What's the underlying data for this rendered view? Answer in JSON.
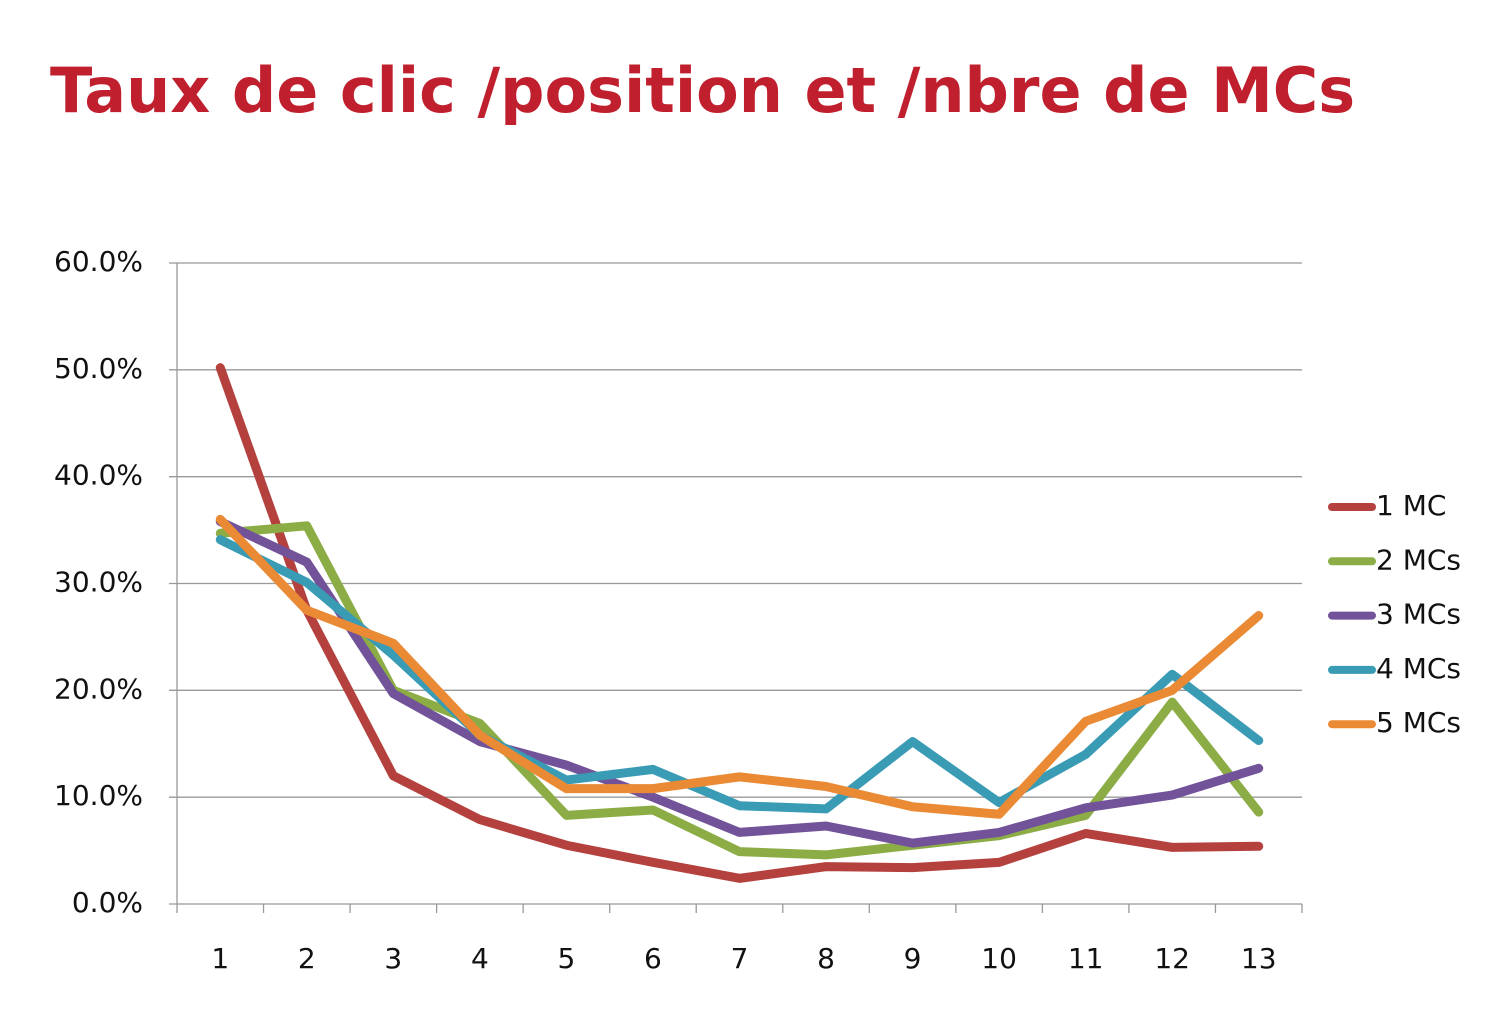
{
  "chart_data": {
    "type": "line",
    "title": "Taux de clic /position et /nbre de MCs",
    "categories": [
      "1",
      "2",
      "3",
      "4",
      "5",
      "6",
      "7",
      "8",
      "9",
      "10",
      "11",
      "12",
      "13"
    ],
    "series": [
      {
        "name": "1 MC",
        "color": "#b5413e",
        "values": [
          50.2,
          27.5,
          12.0,
          7.9,
          5.5,
          3.9,
          2.4,
          3.5,
          3.4,
          3.9,
          6.6,
          5.3,
          5.4
        ]
      },
      {
        "name": "2 MCs",
        "color": "#8cad45",
        "values": [
          34.7,
          35.4,
          20.0,
          16.9,
          8.3,
          8.8,
          4.9,
          4.6,
          5.5,
          6.4,
          8.3,
          18.9,
          8.6
        ]
      },
      {
        "name": "3 MCs",
        "color": "#72539a",
        "values": [
          35.8,
          32.0,
          19.7,
          15.2,
          13.0,
          10.0,
          6.7,
          7.3,
          5.7,
          6.7,
          9.0,
          10.2,
          12.7
        ]
      },
      {
        "name": "4 MCs",
        "color": "#3a9bb5",
        "values": [
          34.1,
          30.1,
          23.3,
          15.8,
          11.6,
          12.6,
          9.2,
          8.9,
          15.2,
          9.5,
          14.0,
          21.5,
          15.3
        ]
      },
      {
        "name": "5 MCs",
        "color": "#ea8a35",
        "values": [
          36.0,
          27.5,
          24.4,
          15.8,
          10.8,
          10.8,
          11.9,
          11.0,
          9.1,
          8.4,
          17.1,
          20.0,
          27.0
        ]
      }
    ],
    "ylim": [
      0,
      60
    ],
    "yticks": [
      {
        "value": 0,
        "label": "0.0%"
      },
      {
        "value": 10,
        "label": "10.0%"
      },
      {
        "value": 20,
        "label": "20.0%"
      },
      {
        "value": 30,
        "label": "30.0%"
      },
      {
        "value": 40,
        "label": "40.0%"
      },
      {
        "value": 50,
        "label": "50.0%"
      },
      {
        "value": 60,
        "label": "60.0%"
      }
    ],
    "grid": true,
    "legend": "right"
  }
}
